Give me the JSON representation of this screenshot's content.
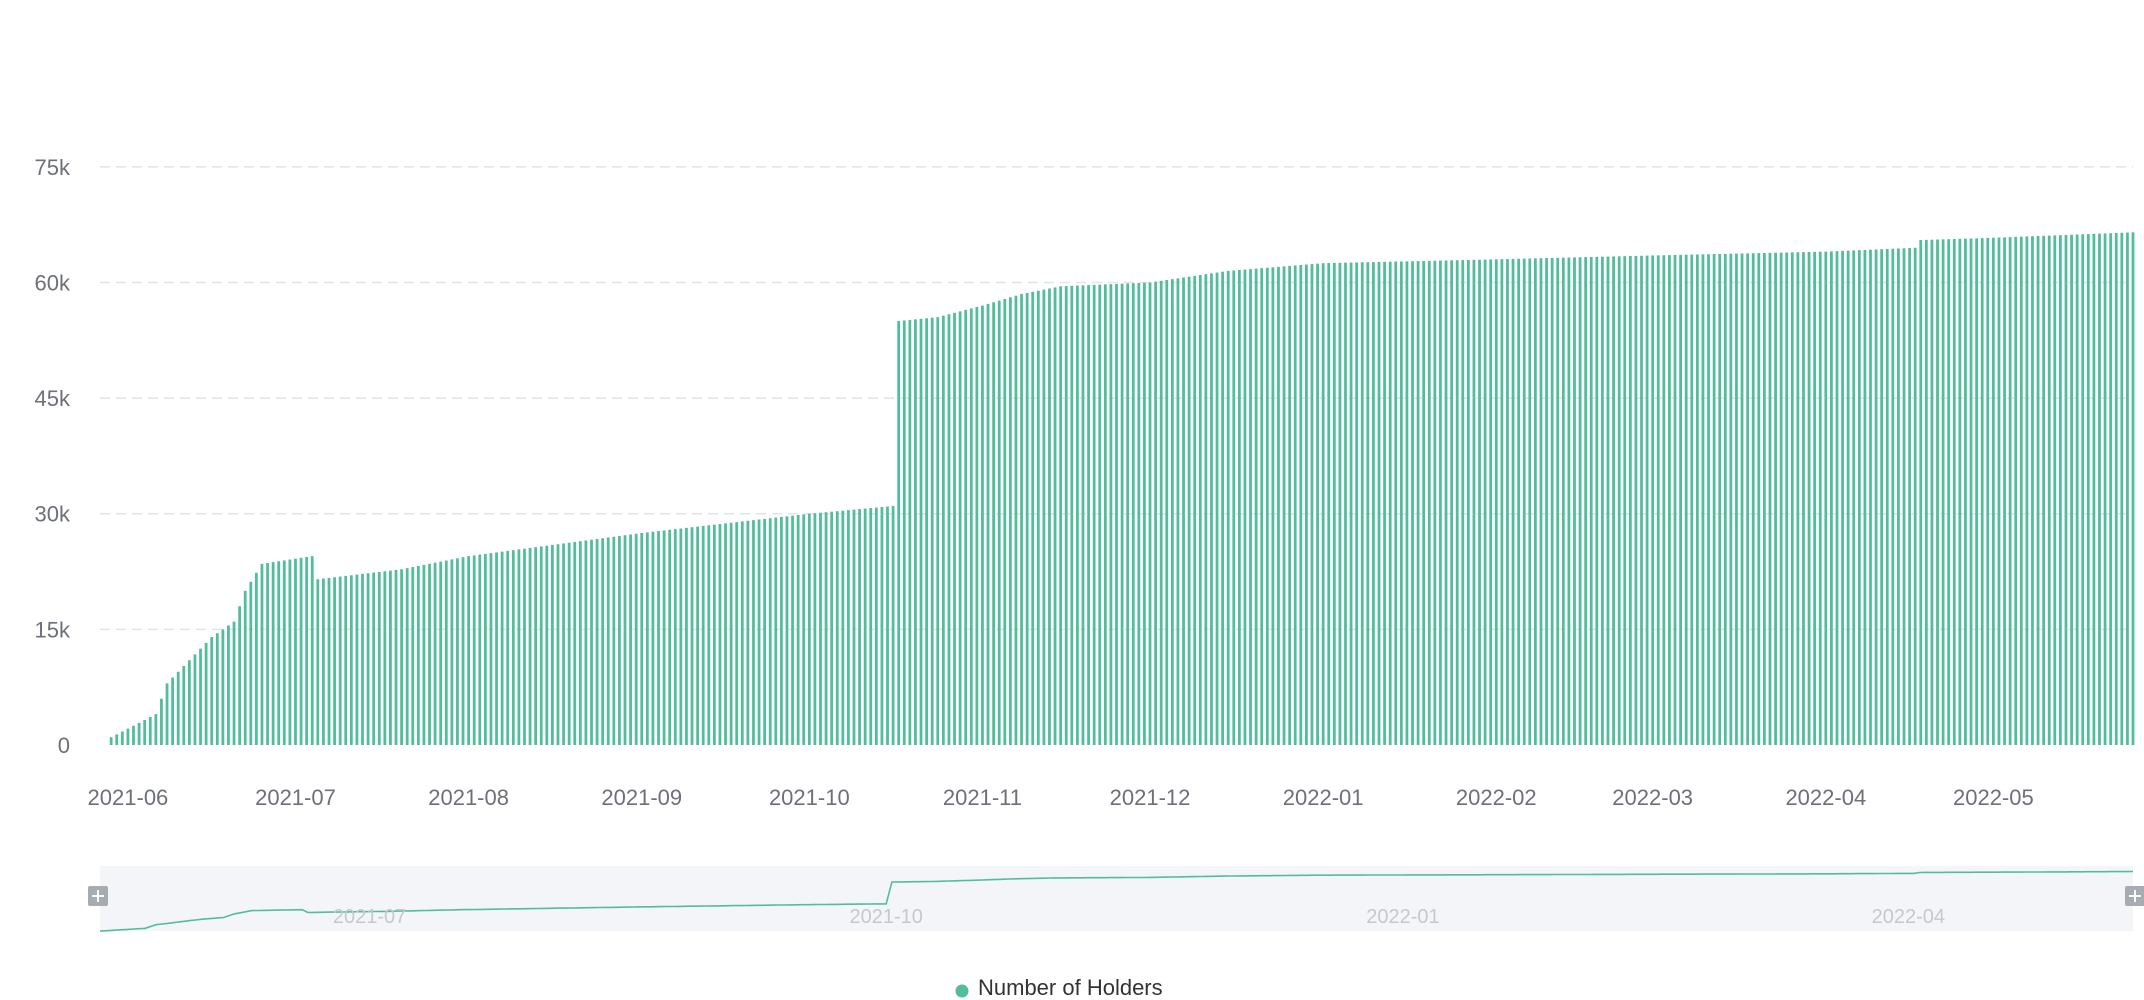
{
  "chart_data": {
    "type": "bar",
    "title": "",
    "xlabel": "",
    "ylabel": "",
    "ylim": [
      0,
      82500
    ],
    "y_ticks": [
      {
        "value": 0,
        "label": "0"
      },
      {
        "value": 15000,
        "label": "15k"
      },
      {
        "value": 30000,
        "label": "30k"
      },
      {
        "value": 45000,
        "label": "45k"
      },
      {
        "value": 60000,
        "label": "60k"
      },
      {
        "value": 75000,
        "label": "75k"
      }
    ],
    "x_range": [
      "2021-05-27",
      "2022-05-26"
    ],
    "x_ticks": [
      {
        "date": "2021-06-01",
        "label": "2021-06"
      },
      {
        "date": "2021-07-01",
        "label": "2021-07"
      },
      {
        "date": "2021-08-01",
        "label": "2021-08"
      },
      {
        "date": "2021-09-01",
        "label": "2021-09"
      },
      {
        "date": "2021-10-01",
        "label": "2021-10"
      },
      {
        "date": "2021-11-01",
        "label": "2021-11"
      },
      {
        "date": "2021-12-01",
        "label": "2021-12"
      },
      {
        "date": "2022-01-01",
        "label": "2022-01"
      },
      {
        "date": "2022-02-01",
        "label": "2022-02"
      },
      {
        "date": "2022-03-01",
        "label": "2022-03"
      },
      {
        "date": "2022-04-01",
        "label": "2022-04"
      },
      {
        "date": "2022-05-01",
        "label": "2022-05"
      }
    ],
    "series": [
      {
        "name": "Number of Holders",
        "color": "#52bd9a",
        "keypoints": [
          {
            "date": "2021-05-29",
            "value": 1000
          },
          {
            "date": "2021-06-06",
            "value": 4000
          },
          {
            "date": "2021-06-08",
            "value": 8000
          },
          {
            "date": "2021-06-16",
            "value": 14000
          },
          {
            "date": "2021-06-20",
            "value": 16000
          },
          {
            "date": "2021-06-22",
            "value": 20000
          },
          {
            "date": "2021-06-25",
            "value": 23500
          },
          {
            "date": "2021-07-04",
            "value": 24500
          },
          {
            "date": "2021-07-05",
            "value": 21500
          },
          {
            "date": "2021-07-20",
            "value": 22800
          },
          {
            "date": "2021-08-01",
            "value": 24500
          },
          {
            "date": "2021-09-01",
            "value": 27500
          },
          {
            "date": "2021-10-01",
            "value": 30000
          },
          {
            "date": "2021-10-16",
            "value": 31000
          },
          {
            "date": "2021-10-17",
            "value": 55000
          },
          {
            "date": "2021-10-24",
            "value": 55500
          },
          {
            "date": "2021-11-01",
            "value": 57000
          },
          {
            "date": "2021-11-08",
            "value": 58500
          },
          {
            "date": "2021-11-15",
            "value": 59500
          },
          {
            "date": "2021-12-01",
            "value": 60000
          },
          {
            "date": "2021-12-15",
            "value": 61500
          },
          {
            "date": "2022-01-01",
            "value": 62500
          },
          {
            "date": "2022-02-01",
            "value": 63000
          },
          {
            "date": "2022-03-01",
            "value": 63500
          },
          {
            "date": "2022-04-01",
            "value": 64000
          },
          {
            "date": "2022-04-17",
            "value": 64500
          },
          {
            "date": "2022-04-18",
            "value": 65500
          },
          {
            "date": "2022-05-01",
            "value": 65800
          },
          {
            "date": "2022-05-26",
            "value": 66500
          }
        ]
      }
    ],
    "dataZoom": {
      "tick_labels": [
        {
          "date": "2021-07-16",
          "label": "2021-07"
        },
        {
          "date": "2021-10-16",
          "label": "2021-10"
        },
        {
          "date": "2022-01-16",
          "label": "2022-01"
        },
        {
          "date": "2022-04-16",
          "label": "2022-04"
        }
      ]
    },
    "legend": {
      "position": "bottom-center",
      "items": [
        {
          "label": "Number of Holders",
          "color": "#52bd9a"
        }
      ]
    },
    "grid": true
  }
}
